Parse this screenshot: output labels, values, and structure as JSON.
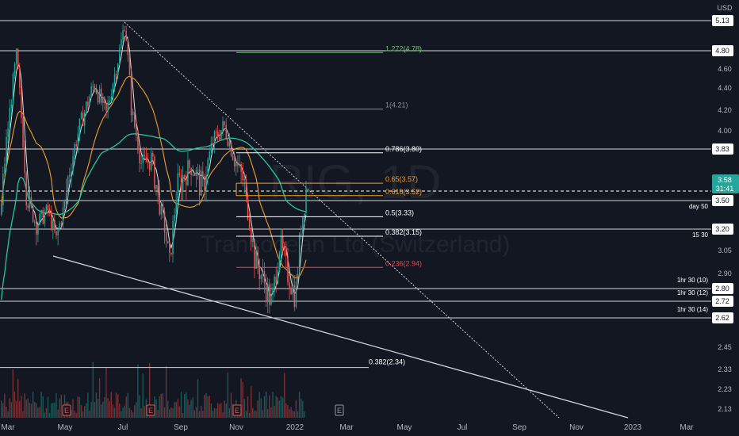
{
  "chart_data": {
    "type": "candlestick",
    "currency": "USD",
    "watermark": {
      "symbol": "RIG, 1D",
      "name": "Transocean Ltd (Switzerland)"
    },
    "x_ticks": [
      "Mar",
      "May",
      "Jul",
      "Sep",
      "Nov",
      "2022",
      "Mar",
      "May",
      "Jul",
      "Sep",
      "Nov",
      "2023",
      "Mar"
    ],
    "y_ticks": [
      4.6,
      4.4,
      4.2,
      4.0,
      3.05,
      2.9,
      2.45,
      2.33,
      2.23,
      2.13
    ],
    "price_levels": [
      {
        "value": 5.13,
        "label": "5.13",
        "note": ""
      },
      {
        "value": 4.8,
        "label": "4.80",
        "note": ""
      },
      {
        "value": 3.83,
        "label": "3.83",
        "note": ""
      },
      {
        "value": 3.5,
        "label": "3.50",
        "note": "day 50"
      },
      {
        "value": 3.2,
        "label": "3.20",
        "note": "15 30"
      },
      {
        "value": 2.8,
        "label": "2.80",
        "note": "1hr 30 (10)"
      },
      {
        "value": 2.72,
        "label": "2.72",
        "note": "1hr 30 (12)"
      },
      {
        "value": 2.62,
        "label": "2.62",
        "note": "1hr 30 (14)"
      }
    ],
    "current_price": {
      "value": 3.58,
      "label": "3.58",
      "countdown": "31:41"
    },
    "fibonacci": [
      {
        "ratio": "1.272",
        "price": 4.78,
        "label": "1.272(4.78)",
        "color": "#6fbf73"
      },
      {
        "ratio": "1",
        "price": 4.21,
        "label": "1(4.21)",
        "color": "#8a8e99"
      },
      {
        "ratio": "0.786",
        "price": 3.8,
        "label": "0.786(3.80)",
        "color": "#ffffff"
      },
      {
        "ratio": "0.65",
        "price": 3.57,
        "label": "0.65(3.57)",
        "color": "#f0a030"
      },
      {
        "ratio": "0.618",
        "price": 3.52,
        "label": "0.618(3.52)",
        "color": "#f0a030"
      },
      {
        "ratio": "0.5",
        "price": 3.33,
        "label": "0.5(3.33)",
        "color": "#ffffff"
      },
      {
        "ratio": "0.382",
        "price": 3.15,
        "label": "0.382(3.15)",
        "color": "#ffffff"
      },
      {
        "ratio": "0.236",
        "price": 2.94,
        "label": "0.236(2.94)",
        "color": "#e04848"
      }
    ],
    "extra_fib": {
      "label": "0.382(2.34)",
      "price": 2.34
    },
    "earnings_markers": [
      "E",
      "E",
      "E",
      "E"
    ],
    "colors": {
      "up": "#26a69a",
      "down": "#ef5350",
      "ma_short": "#e0e0e0",
      "ma_mid": "#f0a030",
      "ma_long": "#26c6a0",
      "price_badge": "#26a69a"
    }
  }
}
